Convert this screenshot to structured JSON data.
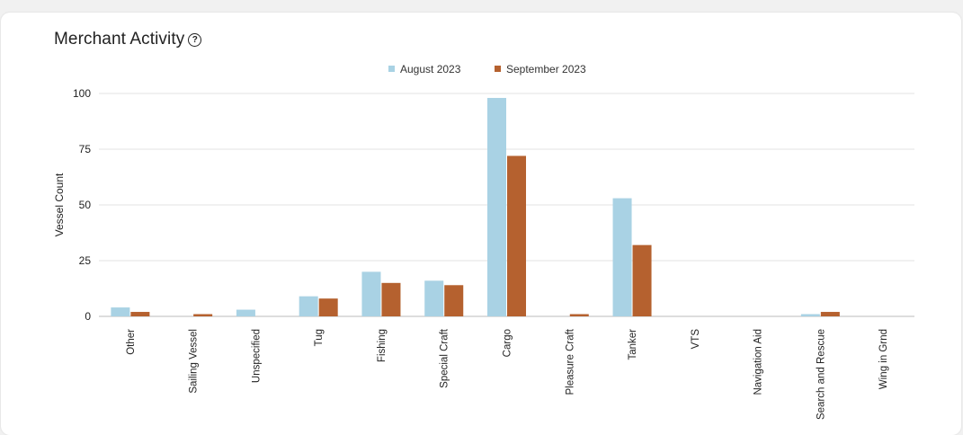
{
  "title": "Merchant Activity",
  "help_icon": "question-circle-icon",
  "colors": {
    "august": "#a9d2e4",
    "september": "#b5612f",
    "grid": "#e3e3e3",
    "axis": "#bbbbbb"
  },
  "chart_data": {
    "type": "bar",
    "title": "Merchant Activity",
    "xlabel": "",
    "ylabel": "Vessel Count",
    "ylim": [
      0,
      100
    ],
    "yticks": [
      0,
      25,
      50,
      75,
      100
    ],
    "grid": true,
    "legend_position": "top-center",
    "categories": [
      "Other",
      "Sailing Vessel",
      "Unspecified",
      "Tug",
      "Fishing",
      "Special Craft",
      "Cargo",
      "Pleasure Craft",
      "Tanker",
      "VTS",
      "Navigation Aid",
      "Search and Rescue",
      "Wing in Grnd"
    ],
    "series": [
      {
        "name": "August 2023",
        "color": "#a9d2e4",
        "values": [
          4,
          0,
          3,
          9,
          20,
          16,
          98,
          0,
          53,
          0,
          0,
          1,
          0
        ]
      },
      {
        "name": "September 2023",
        "color": "#b5612f",
        "values": [
          2,
          1,
          0,
          8,
          15,
          14,
          72,
          1,
          32,
          0,
          0,
          2,
          0
        ]
      }
    ]
  }
}
